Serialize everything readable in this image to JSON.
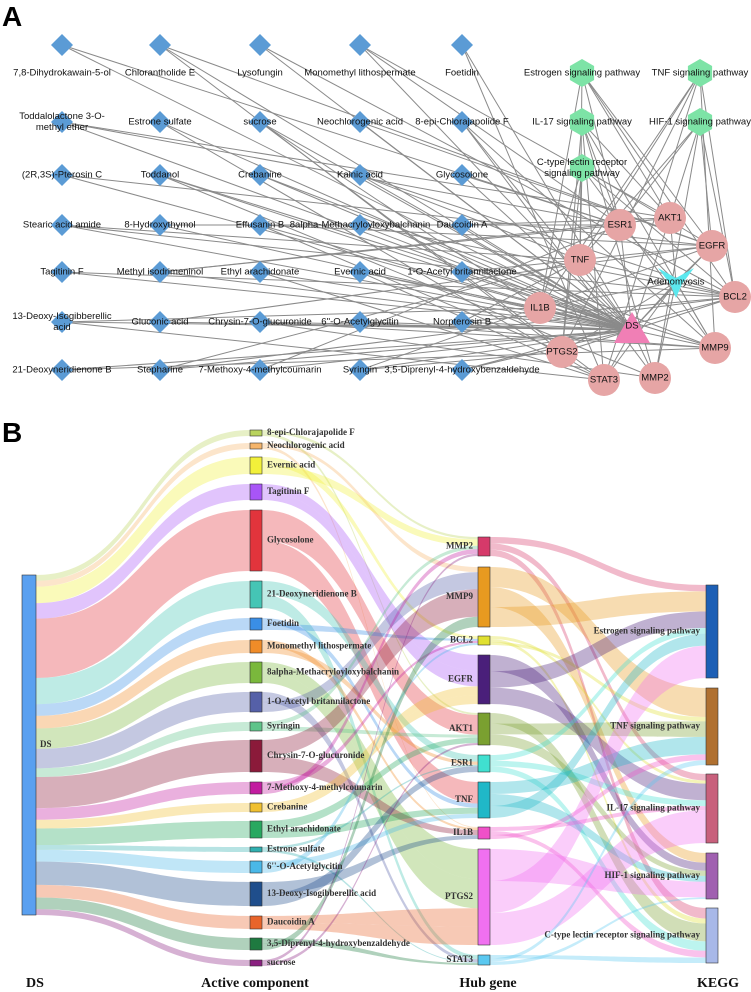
{
  "panel_a": {
    "label": "A",
    "compounds": [
      "7,8-Dihydrokawain-5-ol",
      "Toddalolactone 3-O-methyl ether",
      "(2R,3S)-Pterosin C",
      "Stearic acid amide",
      "Tagitinin F",
      "13-Deoxy-Isogibberellic acid",
      "21-Deoxyneridienone B",
      "Chlorantholide E",
      "Estrone sulfate",
      "Toddanol",
      "8-Hydroxythymol",
      "Methyl isodrimeninol",
      "Gluconic acid",
      "Stepharine",
      "Lysofungin",
      "sucrose",
      "Crebanine",
      "Effusanin B",
      "Ethyl arachidonate",
      "Chrysin-7-O-glucuronide",
      "7-Methoxy-4-methylcoumarin",
      "Monomethyl lithospermate",
      "Neochlorogenic acid",
      "Kainic acid",
      "8alpha-Methacryloyloxybalchanin",
      "Evernic acid",
      "6''-O-Acetylglycitin",
      "Syringin",
      "Foetidin",
      "8-epi-Chlorajapolide F",
      "Glycosolone",
      "Daucoidin A",
      "1-O-Acetyl britannilactone",
      "Norpterosin B",
      "3,5-Diprenyl-4-hydroxybenzaldehyde"
    ],
    "pathways": [
      "Estrogen signaling pathway",
      "TNF signaling pathway",
      "IL-17 signaling pathway",
      "HIF-1 signaling pathway",
      "C-type lectin receptor signaling pathway"
    ],
    "genes": [
      "ESR1",
      "AKT1",
      "EGFR",
      "TNF",
      "BCL2",
      "IL1B",
      "MMP9",
      "PTGS2",
      "STAT3",
      "MMP2"
    ],
    "center": "DS",
    "disease": "Adenomyosis"
  },
  "panel_b": {
    "label": "B",
    "root": "DS",
    "components": [
      "8-epi-Chlorajapolide F",
      "Neochlorogenic acid",
      "Evernic acid",
      "Tagitinin F",
      "Glycosolone",
      "21-Deoxyneridienone B",
      "Foetidin",
      "Monomethyl lithospermate",
      "8alpha-Methacryloyloxybalchanin",
      "1-O-Acetyl britannilactone",
      "Syringin",
      "Chrysin-7-O-glucuronide",
      "7-Methoxy-4-methylcoumarin",
      "Crebanine",
      "Ethyl arachidonate",
      "Estrone sulfate",
      "6''-O-Acetylglycitin",
      "13-Deoxy-Isogibberellic acid",
      "Daucoidin A",
      "3,5-Diprenyl-4-hydroxybenzaldehyde",
      "sucrose"
    ],
    "genes": [
      "MMP2",
      "MMP9",
      "BCL2",
      "EGFR",
      "AKT1",
      "ESR1",
      "TNF",
      "IL1B",
      "PTGS2",
      "STAT3"
    ],
    "pathways": [
      "Estrogen signaling pathway",
      "TNF signaling pathway",
      "IL-17 signaling pathway",
      "HIF-1 signaling pathway",
      "C-type lectin receptor signaling pathway"
    ],
    "columns": [
      "DS",
      "Active component",
      "Hub gene",
      "KEGG"
    ]
  }
}
